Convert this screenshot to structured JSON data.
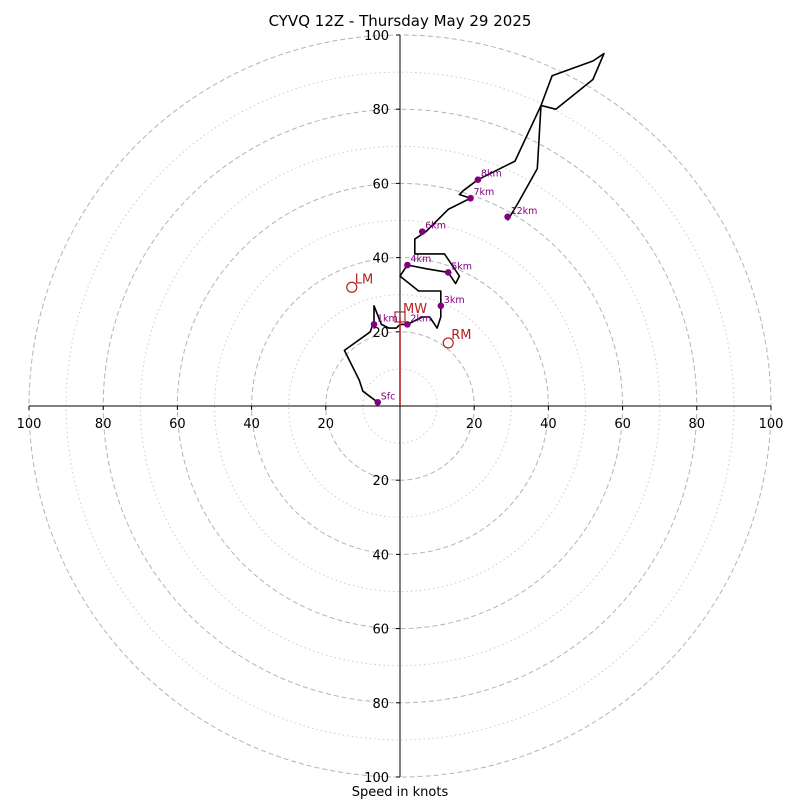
{
  "chart_data": {
    "type": "hodograph",
    "title": "CYVQ 12Z - Thursday May 29 2025",
    "xlabel": "Speed in knots",
    "range": 100,
    "rings_major": [
      20,
      40,
      60,
      80,
      100
    ],
    "rings_minor": [
      10,
      30,
      50,
      70,
      90
    ],
    "tick_labels": [
      "100",
      "80",
      "60",
      "40",
      "20",
      "20",
      "40",
      "60",
      "80",
      "100"
    ],
    "y_tick_labels": [
      "100",
      "80",
      "60",
      "40",
      "20",
      "20",
      "40",
      "60",
      "80",
      "100"
    ],
    "colors": {
      "trace": "#000000",
      "points": "#800080",
      "motion": "#b22222",
      "grid_major": "#b4b4b4",
      "grid_minor": "#cccccc"
    },
    "trace": [
      [
        -6,
        1
      ],
      [
        -10,
        4
      ],
      [
        -11,
        7
      ],
      [
        -15,
        15
      ],
      [
        -8,
        20
      ],
      [
        -7,
        23
      ],
      [
        -7,
        27
      ],
      [
        -5,
        22
      ],
      [
        -3,
        21
      ],
      [
        -1,
        21
      ],
      [
        0,
        22
      ],
      [
        2,
        22
      ],
      [
        6,
        24
      ],
      [
        8,
        24
      ],
      [
        10,
        21
      ],
      [
        11,
        24
      ],
      [
        11,
        31
      ],
      [
        5,
        31
      ],
      [
        0,
        35
      ],
      [
        2,
        38
      ],
      [
        7,
        37
      ],
      [
        13,
        36
      ],
      [
        15,
        33
      ],
      [
        16,
        35
      ],
      [
        12,
        41
      ],
      [
        4,
        41
      ],
      [
        4,
        45
      ],
      [
        7,
        47
      ],
      [
        13,
        53
      ],
      [
        19,
        56
      ],
      [
        16,
        57
      ],
      [
        17,
        58
      ],
      [
        21,
        61
      ],
      [
        31,
        66
      ],
      [
        38,
        81
      ],
      [
        41,
        89
      ],
      [
        52,
        93
      ],
      [
        55,
        95
      ],
      [
        52,
        88
      ],
      [
        42,
        80
      ],
      [
        38,
        81
      ],
      [
        37,
        64
      ],
      [
        32,
        55
      ],
      [
        29,
        50
      ]
    ],
    "heights": [
      {
        "label": "Sfc",
        "u": -6,
        "v": 1
      },
      {
        "label": "1km",
        "u": -7,
        "v": 22
      },
      {
        "label": "2km",
        "u": 2,
        "v": 22
      },
      {
        "label": "3km",
        "u": 11,
        "v": 27
      },
      {
        "label": "4km",
        "u": 2,
        "v": 38
      },
      {
        "label": "5km",
        "u": 13,
        "v": 36
      },
      {
        "label": "6km",
        "u": 6,
        "v": 47
      },
      {
        "label": "7km",
        "u": 19,
        "v": 56
      },
      {
        "label": "8km",
        "u": 21,
        "v": 61
      },
      {
        "label": "12km",
        "u": 29,
        "v": 51
      }
    ],
    "storm_motion": [
      {
        "label": "LM",
        "u": -13,
        "v": 32
      },
      {
        "label": "RM",
        "u": 13,
        "v": 17
      },
      {
        "label": "MW",
        "u": 0,
        "v": 24
      }
    ]
  }
}
